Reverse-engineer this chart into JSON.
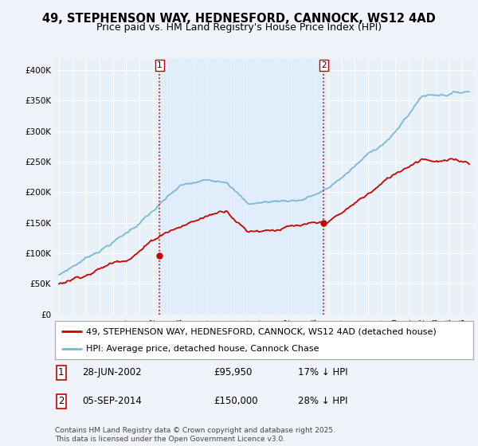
{
  "title": "49, STEPHENSON WAY, HEDNESFORD, CANNOCK, WS12 4AD",
  "subtitle": "Price paid vs. HM Land Registry's House Price Index (HPI)",
  "ylabel_ticks": [
    "£0",
    "£50K",
    "£100K",
    "£150K",
    "£200K",
    "£250K",
    "£300K",
    "£350K",
    "£400K"
  ],
  "ytick_values": [
    0,
    50000,
    100000,
    150000,
    200000,
    250000,
    300000,
    350000,
    400000
  ],
  "ylim": [
    0,
    420000
  ],
  "xlim_start": 1994.7,
  "xlim_end": 2025.8,
  "hpi_color": "#7ab8d9",
  "price_color": "#cc0000",
  "vline_color": "#cc0000",
  "shade_color": "#ddeeff",
  "annotation1": {
    "x": 2002.48,
    "label": "1",
    "price_y": 95950,
    "date": "28-JUN-2002",
    "price": "£95,950",
    "pct": "17% ↓ HPI"
  },
  "annotation2": {
    "x": 2014.67,
    "label": "2",
    "price_y": 150000,
    "date": "05-SEP-2014",
    "price": "£150,000",
    "pct": "28% ↓ HPI"
  },
  "legend_line1": "49, STEPHENSON WAY, HEDNESFORD, CANNOCK, WS12 4AD (detached house)",
  "legend_line2": "HPI: Average price, detached house, Cannock Chase",
  "footer": "Contains HM Land Registry data © Crown copyright and database right 2025.\nThis data is licensed under the Open Government Licence v3.0.",
  "background_color": "#f0f4fa",
  "plot_bg_color": "#e8f0f8",
  "grid_color": "#ffffff",
  "title_fontsize": 10.5,
  "subtitle_fontsize": 9,
  "tick_fontsize": 7.5,
  "legend_fontsize": 8
}
